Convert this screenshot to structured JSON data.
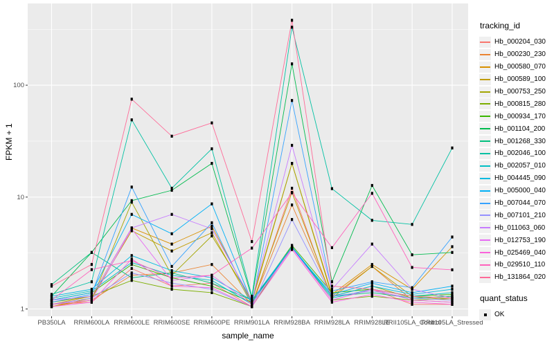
{
  "chart_data": {
    "type": "line",
    "title": "",
    "xlabel": "sample_name",
    "ylabel": "FPKM + 1",
    "y_scale": "log10",
    "ylim": [
      0.87,
      540
    ],
    "y_major_ticks": [
      1,
      10,
      100
    ],
    "y_minor_gridlines": [
      3.162,
      31.62,
      316.2
    ],
    "grid": "on",
    "panel_background": "#EBEBEB",
    "grid_color": "#FFFFFF",
    "point_marker": "small-black-square",
    "categories": [
      "PB350LA",
      "RRIM600LA",
      "RRIM600LE",
      "RRIM600SE",
      "RRIM600PE",
      "RRIM901LA",
      "RRIM928BA",
      "RRIM928LA",
      "RRIM928LE",
      "RRII105LA_Control",
      "RRII105LA_Stressed"
    ],
    "legend": {
      "title": "tracking_id",
      "position": "right"
    },
    "quant_legend": {
      "title": "quant_status",
      "items": [
        {
          "label": "OK",
          "marker": "black-square"
        }
      ]
    },
    "series": [
      {
        "name": "Hb_000204_030",
        "color": "#F8766D",
        "values": [
          1.1,
          1.15,
          2.3,
          1.6,
          1.7,
          1.05,
          12.0,
          1.2,
          1.5,
          1.1,
          1.1
        ]
      },
      {
        "name": "Hb_000230_230",
        "color": "#EA8331",
        "values": [
          1.05,
          1.2,
          2.0,
          2.1,
          2.5,
          1.1,
          8.5,
          1.3,
          2.4,
          1.2,
          1.15
        ]
      },
      {
        "name": "Hb_000580_070",
        "color": "#D89000",
        "values": [
          1.1,
          1.3,
          5.3,
          3.8,
          5.5,
          1.15,
          20.0,
          1.35,
          2.5,
          1.5,
          3.6
        ]
      },
      {
        "name": "Hb_000589_100",
        "color": "#C09B00",
        "values": [
          1.05,
          1.25,
          5.0,
          3.3,
          4.8,
          1.1,
          11.0,
          1.25,
          2.4,
          1.3,
          1.2
        ]
      },
      {
        "name": "Hb_000753_250",
        "color": "#A3A500",
        "values": [
          1.1,
          1.2,
          9.0,
          2.0,
          4.5,
          1.2,
          20.0,
          1.3,
          1.6,
          1.25,
          1.3
        ]
      },
      {
        "name": "Hb_000815_280",
        "color": "#7CAE00",
        "values": [
          1.15,
          1.3,
          1.8,
          1.5,
          1.4,
          1.05,
          3.6,
          1.2,
          1.3,
          1.2,
          1.25
        ]
      },
      {
        "name": "Hb_000934_170",
        "color": "#39B600",
        "values": [
          1.2,
          1.4,
          2.5,
          1.9,
          1.6,
          1.15,
          3.7,
          1.4,
          1.5,
          1.3,
          1.35
        ]
      },
      {
        "name": "Hb_001104_200",
        "color": "#00BB4E",
        "values": [
          1.3,
          3.2,
          9.3,
          11.5,
          20.0,
          1.25,
          155,
          1.75,
          12.7,
          3.05,
          3.2
        ]
      },
      {
        "name": "Hb_001268_330",
        "color": "#00BF7D",
        "values": [
          1.65,
          3.2,
          1.9,
          2.1,
          1.7,
          1.2,
          3.5,
          1.3,
          1.4,
          1.25,
          1.3
        ]
      },
      {
        "name": "Hb_002046_100",
        "color": "#00C1A3",
        "values": [
          1.35,
          1.75,
          49,
          12.0,
          27.0,
          1.3,
          330,
          11.9,
          6.2,
          5.7,
          27.5
        ]
      },
      {
        "name": "Hb_002057_010",
        "color": "#00BFC4",
        "values": [
          1.25,
          1.45,
          2.6,
          2.0,
          1.8,
          1.1,
          3.5,
          1.25,
          1.5,
          1.3,
          1.4
        ]
      },
      {
        "name": "Hb_004445_090",
        "color": "#00BAE0",
        "values": [
          1.3,
          1.5,
          3.0,
          2.2,
          1.9,
          1.2,
          3.6,
          1.3,
          1.6,
          1.35,
          1.5
        ]
      },
      {
        "name": "Hb_005000_040",
        "color": "#00B0F6",
        "values": [
          1.2,
          1.4,
          7.0,
          4.7,
          8.7,
          1.15,
          3.5,
          1.35,
          1.7,
          1.4,
          1.6
        ]
      },
      {
        "name": "Hb_007044_070",
        "color": "#35A2FF",
        "values": [
          1.15,
          1.35,
          12.3,
          2.4,
          5.9,
          1.1,
          73,
          1.45,
          1.75,
          1.55,
          4.4
        ]
      },
      {
        "name": "Hb_007101_210",
        "color": "#9590FF",
        "values": [
          1.1,
          1.25,
          2.1,
          1.7,
          1.5,
          1.05,
          6.3,
          1.3,
          1.45,
          1.25,
          1.2
        ]
      },
      {
        "name": "Hb_011063_060",
        "color": "#C77CFF",
        "values": [
          1.2,
          1.3,
          5.3,
          7.0,
          5.2,
          1.2,
          29,
          1.5,
          3.8,
          1.5,
          1.25
        ]
      },
      {
        "name": "Hb_012753_190",
        "color": "#E76BF3",
        "values": [
          1.1,
          1.2,
          5.2,
          1.8,
          2.0,
          1.1,
          3.5,
          1.2,
          1.5,
          1.2,
          1.15
        ]
      },
      {
        "name": "Hb_025469_040",
        "color": "#FA62DB",
        "values": [
          1.05,
          1.15,
          2.8,
          1.6,
          1.55,
          1.05,
          3.4,
          1.15,
          1.35,
          1.15,
          1.1
        ]
      },
      {
        "name": "Hb_029510_110",
        "color": "#FF62BC",
        "values": [
          1.2,
          2.25,
          2.7,
          1.9,
          2.0,
          3.5,
          10.9,
          3.53,
          10.8,
          2.35,
          2.24
        ]
      },
      {
        "name": "Hb_131864_020",
        "color": "#FF6A98",
        "values": [
          1.6,
          2.5,
          75,
          35,
          46,
          4.0,
          380,
          1.6,
          1.5,
          1.3,
          1.25
        ]
      }
    ]
  }
}
